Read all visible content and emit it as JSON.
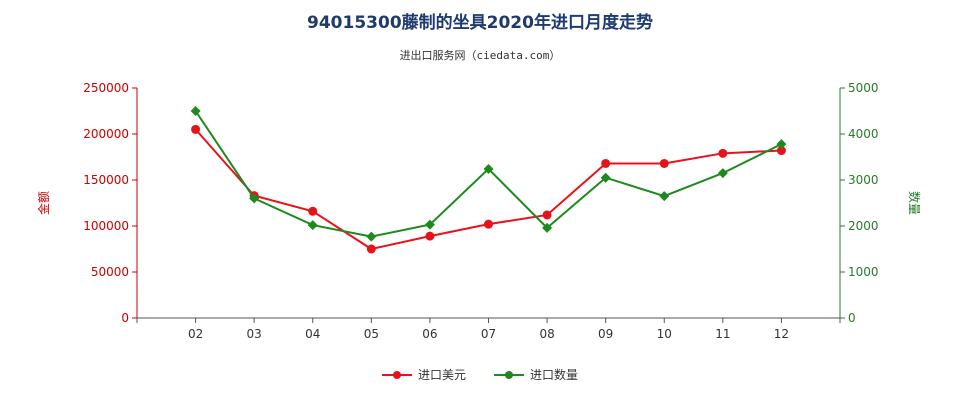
{
  "header": {
    "title": "94015300藤制的坐具2020年进口月度走势",
    "subtitle": "进出口服务网（ciedata.com）"
  },
  "colors": {
    "amount": "#e8121b",
    "quantity": "#1e8a1e",
    "left_axis": "#cc0000",
    "right_axis": "#2a7a2a"
  },
  "chart_data": {
    "type": "line",
    "categories": [
      "02",
      "03",
      "04",
      "05",
      "06",
      "07",
      "08",
      "09",
      "10",
      "11",
      "12"
    ],
    "ylabel_left": "金额",
    "ylabel_right": "数量",
    "ylim_left": [
      0,
      250000
    ],
    "ylim_right": [
      0,
      5000
    ],
    "yticks_left": [
      "0",
      "50000",
      "100000",
      "150000",
      "200000",
      "250000"
    ],
    "yticks_right": [
      "0",
      "1000",
      "2000",
      "3000",
      "4000",
      "5000"
    ],
    "grid": false,
    "legend_position": "bottom",
    "series": [
      {
        "name": "进口美元",
        "axis": "left",
        "values": [
          205000,
          133000,
          116000,
          75000,
          89000,
          102000,
          112000,
          168000,
          168000,
          179000,
          182000
        ]
      },
      {
        "name": "进口数量",
        "axis": "right",
        "values": [
          4500,
          2600,
          2020,
          1770,
          2030,
          3240,
          1960,
          3050,
          2650,
          3150,
          3780
        ]
      }
    ]
  }
}
